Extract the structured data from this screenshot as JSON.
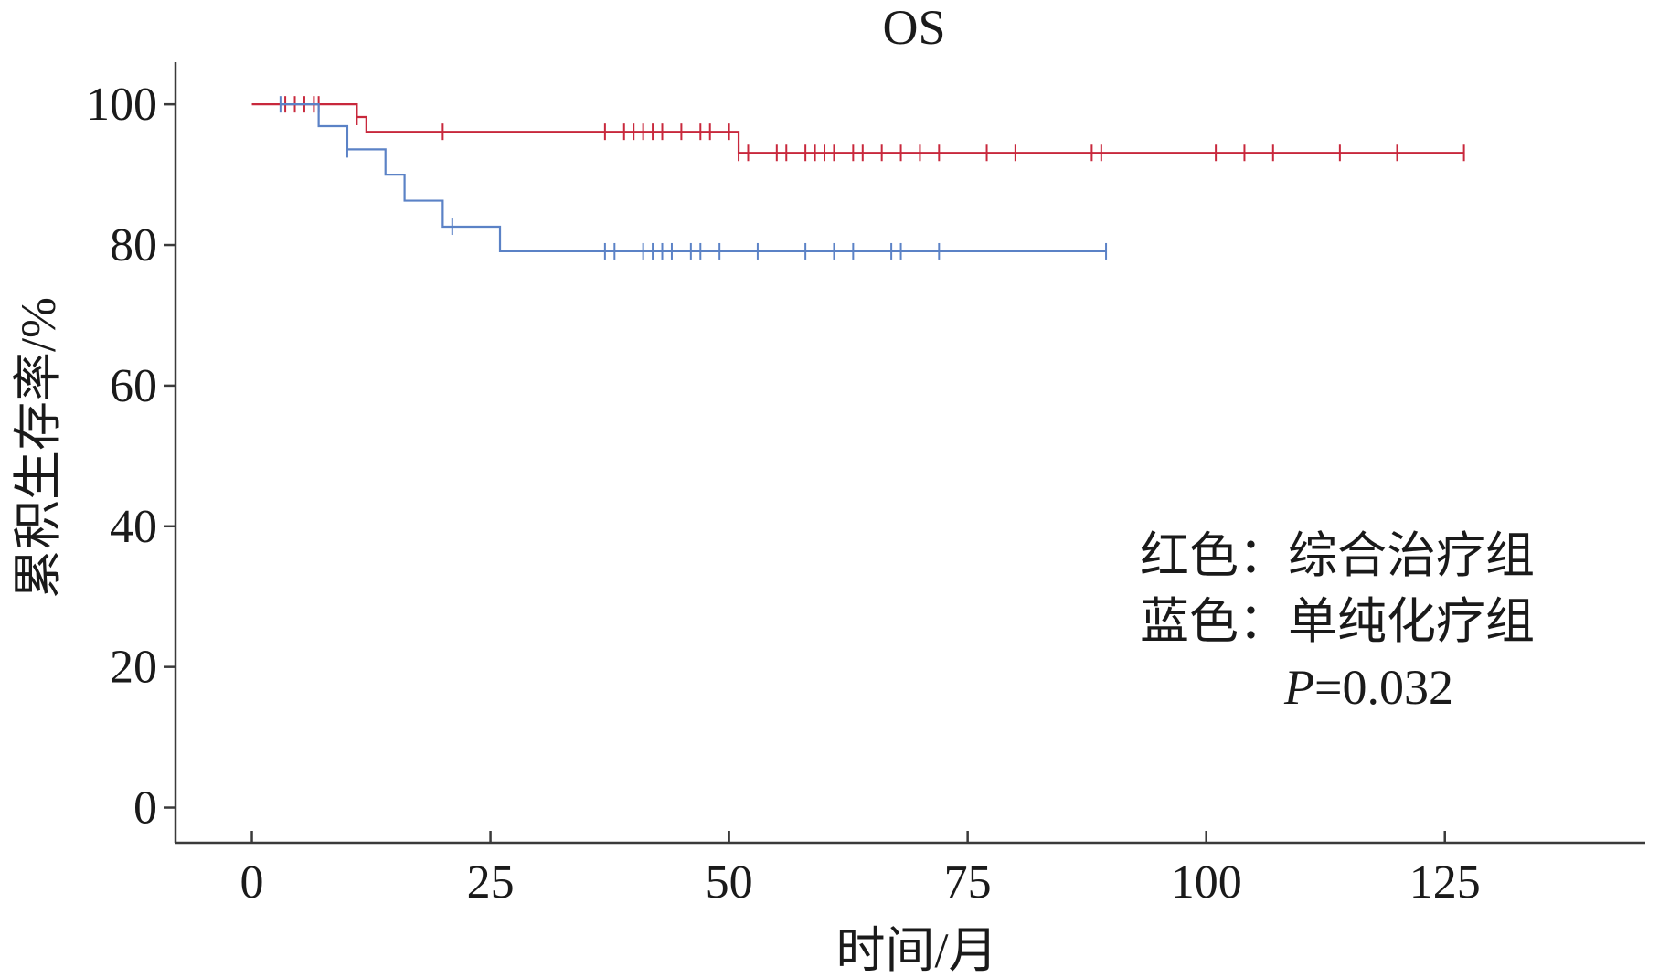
{
  "chart_data": {
    "type": "line",
    "title": "OS",
    "xlabel": "时间/月",
    "ylabel": "累积生存率/%",
    "xlim": [
      -8,
      146
    ],
    "ylim": [
      -5,
      106
    ],
    "x_ticks": [
      "0",
      "25",
      "50",
      "75",
      "100",
      "125"
    ],
    "x_tick_values": [
      0,
      25,
      50,
      75,
      100,
      125
    ],
    "y_ticks": [
      "0",
      "20",
      "40",
      "60",
      "80",
      "100"
    ],
    "y_tick_values": [
      0,
      20,
      40,
      60,
      80,
      100
    ],
    "grid": false,
    "legend_placement": "bottom-right",
    "legend": {
      "line1": "红色：综合治疗组",
      "line2": "蓝色：单纯化疗组",
      "p_label": "P",
      "p_value": "=0.032"
    },
    "series": [
      {
        "color": "#c8283c",
        "steps": [
          [
            0,
            100
          ],
          [
            11,
            98.2
          ],
          [
            12,
            96.1
          ],
          [
            51,
            93.1
          ],
          [
            127,
            93.1
          ]
        ],
        "censored": [
          3.5,
          4.5,
          5.5,
          6.5,
          7,
          11,
          20,
          37,
          39,
          40,
          41,
          42,
          43,
          45,
          47,
          48,
          50,
          51,
          52,
          55,
          56,
          58,
          59,
          60,
          61,
          63,
          64,
          66,
          68,
          70,
          72,
          77,
          80,
          88,
          89,
          101,
          104,
          107,
          114,
          120,
          127
        ]
      },
      {
        "color": "#5b82c6",
        "steps": [
          [
            3,
            100
          ],
          [
            7,
            96.9
          ],
          [
            10,
            93.6
          ],
          [
            14,
            90
          ],
          [
            16,
            86.3
          ],
          [
            20,
            82.6
          ],
          [
            26,
            79.1
          ],
          [
            89.5,
            79.1
          ]
        ],
        "censored": [
          3,
          10,
          21,
          37,
          38,
          41,
          42,
          43,
          44,
          46,
          47,
          49,
          53,
          58,
          61,
          63,
          67,
          68,
          72,
          89.5
        ]
      }
    ]
  }
}
